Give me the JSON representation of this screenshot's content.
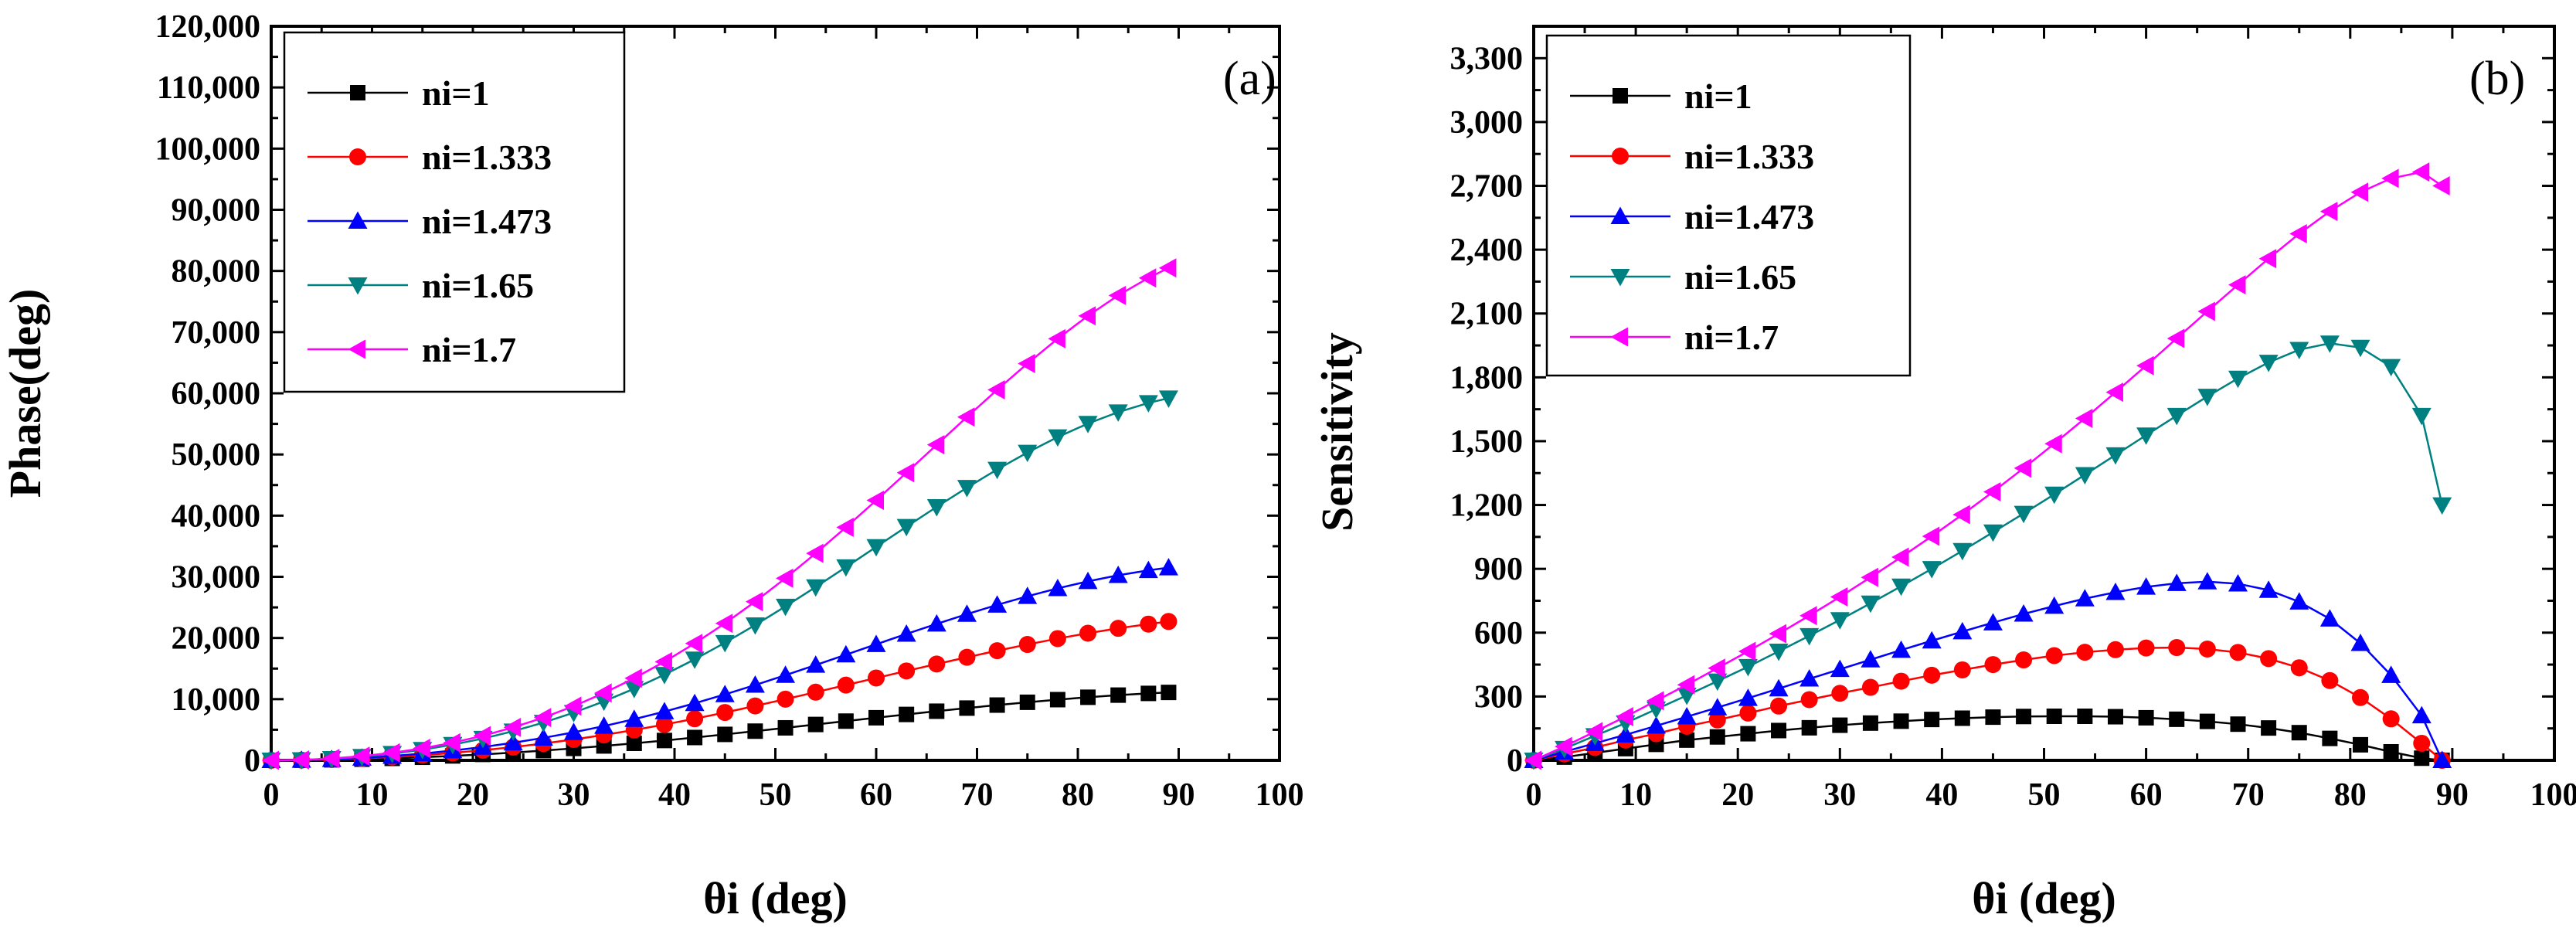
{
  "chart_data": [
    {
      "type": "line",
      "panel_label": "(a)",
      "title": "",
      "xlabel": "θi (deg)",
      "ylabel": "Phase(deg)",
      "xlim": [
        0,
        100
      ],
      "ylim": [
        0,
        120000
      ],
      "x_ticks": [
        0,
        10,
        20,
        30,
        40,
        50,
        60,
        70,
        80,
        90,
        100
      ],
      "x_tick_labels": [
        "0",
        "10",
        "20",
        "30",
        "40",
        "50",
        "60",
        "70",
        "80",
        "90",
        "100"
      ],
      "y_ticks": [
        0,
        10000,
        20000,
        30000,
        40000,
        50000,
        60000,
        70000,
        80000,
        90000,
        100000,
        110000,
        120000
      ],
      "y_tick_labels": [
        "0",
        "10,000",
        "20,000",
        "30,000",
        "40,000",
        "50,000",
        "60,000",
        "70,000",
        "80,000",
        "90,000",
        "100,000",
        "110,000",
        "120,000"
      ],
      "legend_position": "top-left",
      "x": [
        0,
        3,
        6,
        9,
        12,
        15,
        18,
        21,
        24,
        27,
        30,
        33,
        36,
        39,
        42,
        45,
        48,
        51,
        54,
        57,
        60,
        63,
        66,
        69,
        72,
        75,
        78,
        81,
        84,
        87,
        89
      ],
      "series": [
        {
          "name": "ni=1",
          "color": "#000000",
          "marker": "square",
          "values": [
            0,
            20,
            80,
            180,
            320,
            500,
            720,
            970,
            1260,
            1590,
            1950,
            2350,
            2780,
            3240,
            3730,
            4240,
            4770,
            5310,
            5860,
            6410,
            6960,
            7500,
            8030,
            8540,
            9030,
            9490,
            9920,
            10310,
            10660,
            10940,
            11100
          ]
        },
        {
          "name": "ni=1.333",
          "color": "#ff0000",
          "marker": "circle",
          "values": [
            0,
            30,
            130,
            300,
            540,
            840,
            1210,
            1650,
            2160,
            2750,
            3410,
            4150,
            4960,
            5850,
            6800,
            7820,
            8890,
            10000,
            11140,
            12300,
            13460,
            14610,
            15740,
            16850,
            17920,
            18940,
            19900,
            20780,
            21580,
            22270,
            22700
          ]
        },
        {
          "name": "ni=1.473",
          "color": "#0000ff",
          "marker": "triangle-up",
          "values": [
            0,
            40,
            170,
            390,
            700,
            1100,
            1590,
            2180,
            2870,
            3670,
            4580,
            5600,
            6730,
            7970,
            9320,
            10770,
            12310,
            13920,
            15580,
            17270,
            18970,
            20660,
            22310,
            23900,
            25410,
            26820,
            28110,
            29260,
            30250,
            31060,
            31500
          ]
        },
        {
          "name": "ni=1.65",
          "color": "#008080",
          "marker": "triangle-down",
          "values": [
            0,
            60,
            260,
            600,
            1090,
            1740,
            2560,
            3560,
            4760,
            6170,
            7790,
            9640,
            11710,
            14000,
            16510,
            19220,
            22110,
            25160,
            28330,
            31590,
            34890,
            38190,
            41430,
            44570,
            47550,
            50320,
            52840,
            55050,
            56920,
            58430,
            59200
          ]
        },
        {
          "name": "ni=1.7",
          "color": "#ff00ff",
          "marker": "triangle-left",
          "values": [
            0,
            70,
            300,
            680,
            1230,
            1960,
            2880,
            4020,
            5380,
            6990,
            8860,
            11000,
            13420,
            16120,
            19110,
            22390,
            25950,
            29770,
            33830,
            38090,
            42500,
            47020,
            51580,
            56120,
            60570,
            64860,
            68920,
            72660,
            76000,
            78860,
            80500
          ]
        }
      ]
    },
    {
      "type": "line",
      "panel_label": "(b)",
      "title": "",
      "xlabel": "θi (deg)",
      "ylabel": "Sensitivity",
      "xlim": [
        0,
        100
      ],
      "ylim": [
        0,
        3450
      ],
      "x_ticks": [
        0,
        10,
        20,
        30,
        40,
        50,
        60,
        70,
        80,
        90,
        100
      ],
      "x_tick_labels": [
        "0",
        "10",
        "20",
        "30",
        "40",
        "50",
        "60",
        "70",
        "80",
        "90",
        "100"
      ],
      "y_ticks": [
        0,
        300,
        600,
        900,
        1200,
        1500,
        1800,
        2100,
        2400,
        2700,
        3000,
        3300
      ],
      "y_tick_labels": [
        "0",
        "300",
        "600",
        "900",
        "1,200",
        "1,500",
        "1,800",
        "2,100",
        "2,400",
        "2,700",
        "3,000",
        "3,300"
      ],
      "legend_position": "top-left",
      "x": [
        0,
        3,
        6,
        9,
        12,
        15,
        18,
        21,
        24,
        27,
        30,
        33,
        36,
        39,
        42,
        45,
        48,
        51,
        54,
        57,
        60,
        63,
        66,
        69,
        72,
        75,
        78,
        81,
        84,
        87,
        89
      ],
      "series": [
        {
          "name": "ni=1",
          "color": "#000000",
          "marker": "square",
          "values": [
            0,
            15,
            35,
            55,
            75,
            95,
            110,
            125,
            140,
            153,
            165,
            175,
            184,
            192,
            198,
            203,
            206,
            207,
            207,
            205,
            200,
            193,
            183,
            170,
            152,
            130,
            103,
            73,
            40,
            10,
            0
          ]
        },
        {
          "name": "ni=1.333",
          "color": "#ff0000",
          "marker": "circle",
          "values": [
            0,
            30,
            60,
            95,
            125,
            160,
            190,
            222,
            255,
            285,
            315,
            343,
            372,
            400,
            425,
            450,
            472,
            492,
            508,
            520,
            528,
            530,
            523,
            507,
            478,
            435,
            375,
            295,
            195,
            80,
            0
          ]
        },
        {
          "name": "ni=1.473",
          "color": "#0000ff",
          "marker": "triangle-up",
          "values": [
            0,
            40,
            80,
            120,
            162,
            205,
            248,
            292,
            337,
            383,
            428,
            473,
            518,
            562,
            605,
            647,
            688,
            725,
            760,
            790,
            815,
            832,
            840,
            830,
            800,
            745,
            665,
            550,
            400,
            210,
            0
          ]
        },
        {
          "name": "ni=1.65",
          "color": "#008080",
          "marker": "triangle-down",
          "values": [
            0,
            55,
            115,
            175,
            240,
            305,
            372,
            440,
            512,
            585,
            660,
            738,
            818,
            900,
            985,
            1072,
            1160,
            1250,
            1342,
            1435,
            1528,
            1620,
            1710,
            1795,
            1870,
            1930,
            1960,
            1940,
            1850,
            1620,
            1200
          ]
        },
        {
          "name": "ni=1.7",
          "color": "#ff00ff",
          "marker": "triangle-left",
          "values": [
            0,
            65,
            135,
            205,
            280,
            355,
            433,
            512,
            595,
            680,
            768,
            860,
            955,
            1053,
            1155,
            1262,
            1373,
            1488,
            1607,
            1730,
            1855,
            1983,
            2110,
            2235,
            2358,
            2475,
            2580,
            2670,
            2735,
            2765,
            2700
          ]
        }
      ]
    }
  ]
}
